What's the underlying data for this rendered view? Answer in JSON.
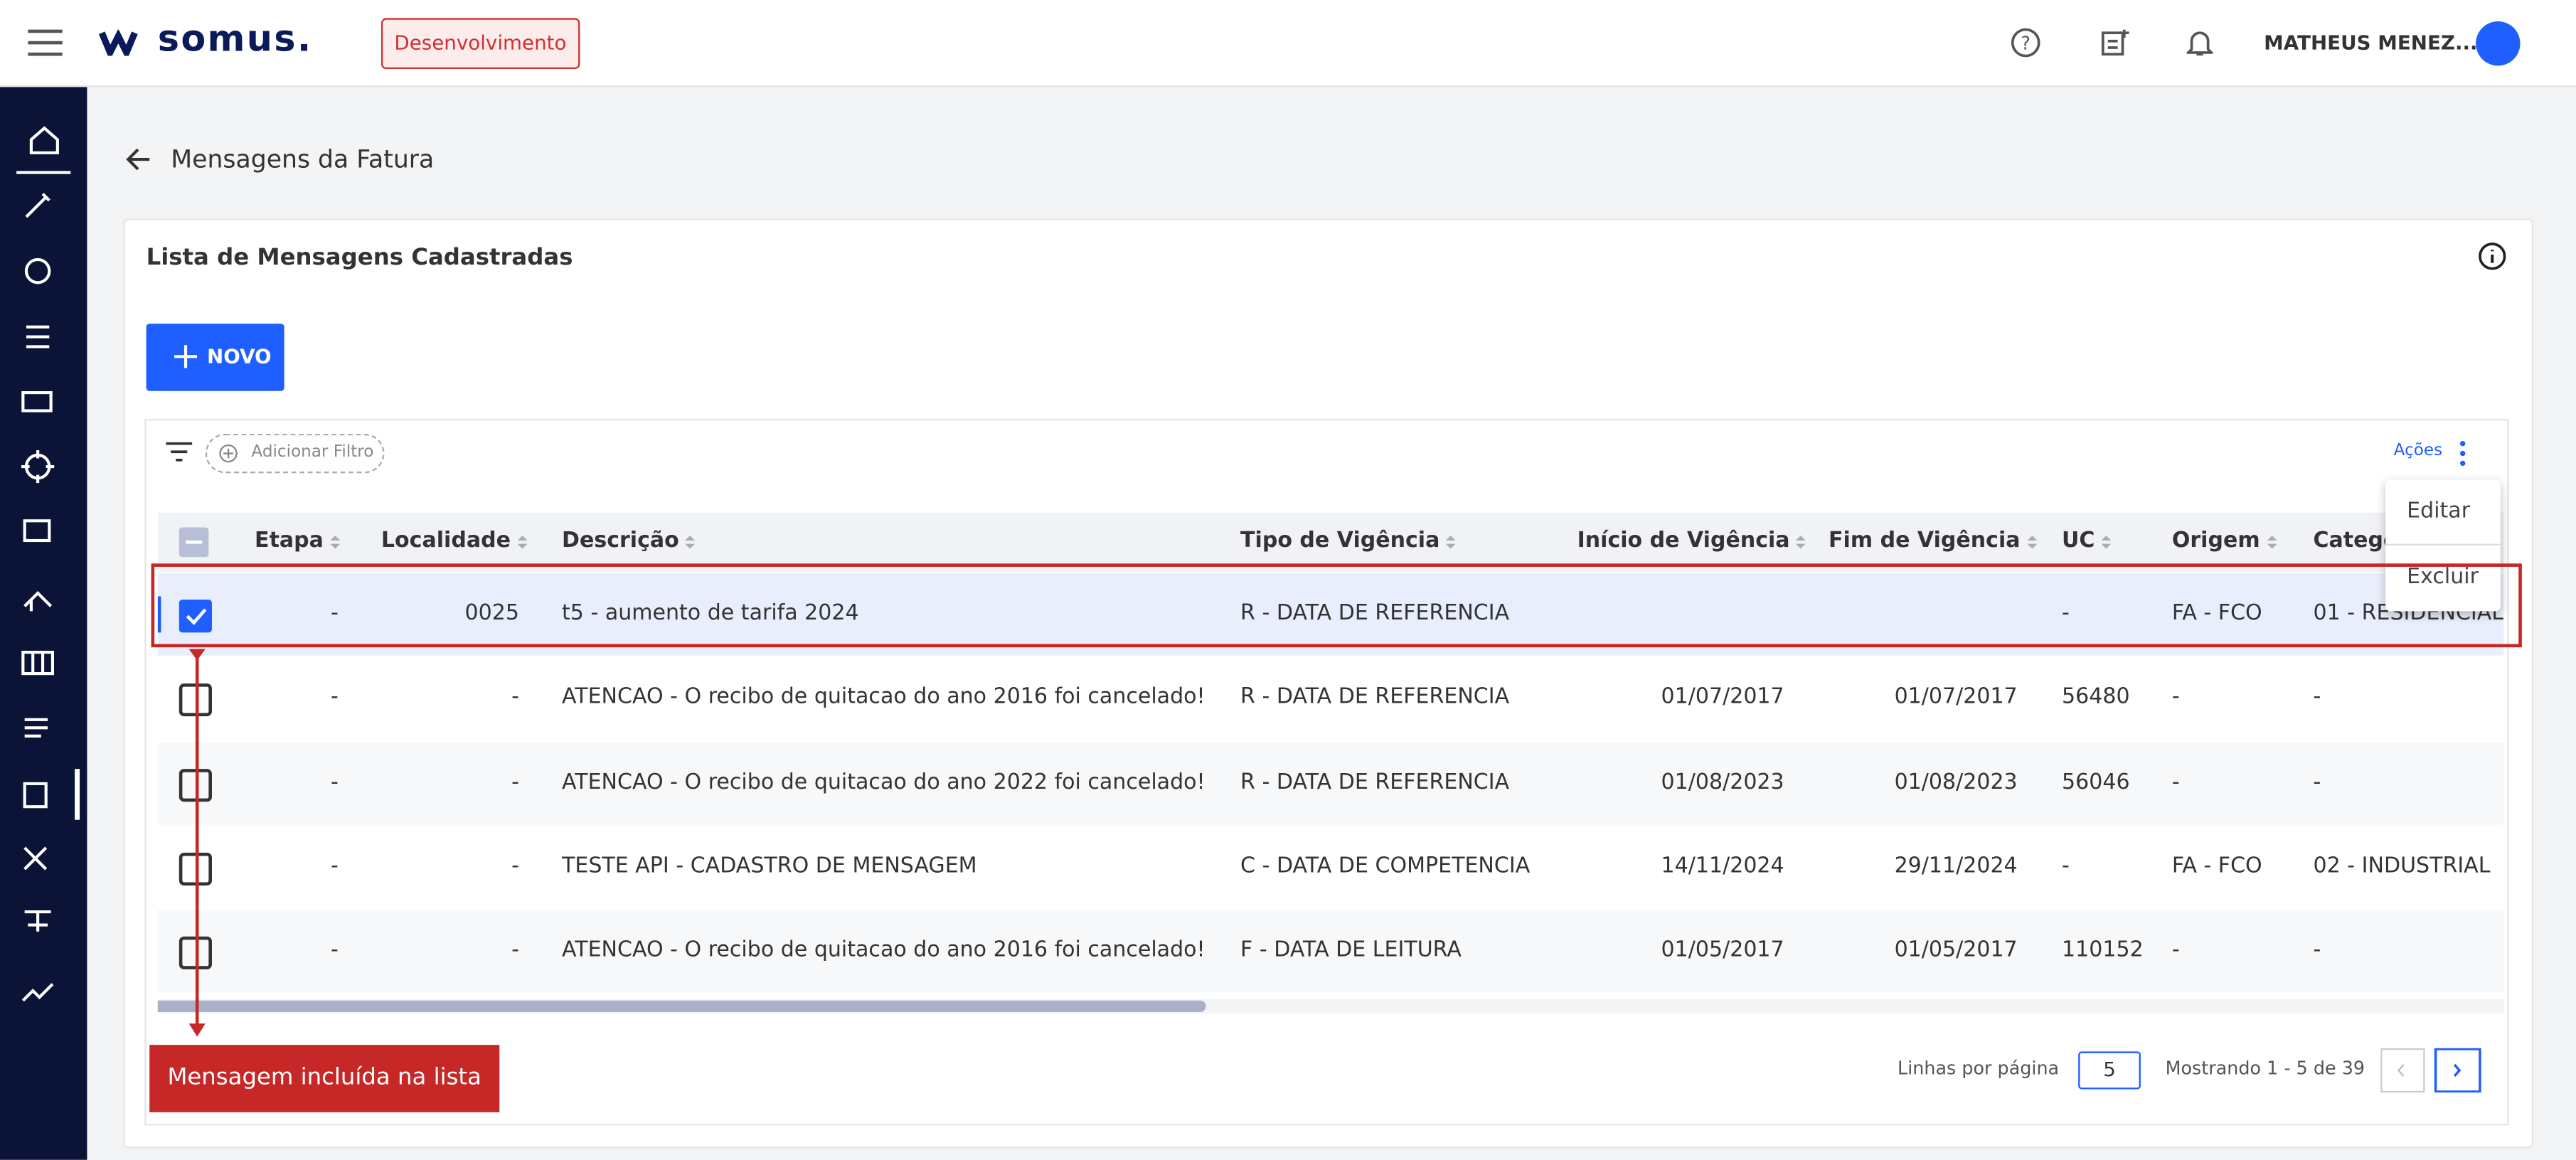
{
  "header": {
    "brand": "somus.",
    "environment": "Desenvolvimento",
    "user": "MATHEUS MENEZ..."
  },
  "page": {
    "title": "Mensagens da Fatura"
  },
  "card": {
    "title": "Lista de Mensagens Cadastradas",
    "new_button": "NOVO",
    "add_filter": "Adicionar Filtro",
    "actions": "Ações",
    "actions_menu": [
      "Editar",
      "Excluir"
    ]
  },
  "table": {
    "columns": [
      "Etapa",
      "Localidade",
      "Descrição",
      "Tipo de Vigência",
      "Início de Vigência",
      "Fim de Vigência",
      "UC",
      "Origem",
      "Categoria"
    ],
    "rows": [
      {
        "checked": true,
        "cells": [
          "-",
          "0025",
          "t5 - aumento de tarifa 2024",
          "R - DATA DE REFERENCIA",
          null,
          null,
          "-",
          "FA - FCO",
          "01 - RESIDENCIAL"
        ]
      },
      {
        "checked": false,
        "cells": [
          "-",
          "-",
          "ATENCAO - O recibo de quitacao do ano 2016 foi cancelado!",
          "R - DATA DE REFERENCIA",
          "01/07/2017",
          "01/07/2017",
          "56480",
          "-",
          "-"
        ]
      },
      {
        "checked": false,
        "cells": [
          "-",
          "-",
          "ATENCAO - O recibo de quitacao do ano 2022 foi cancelado!",
          "R - DATA DE REFERENCIA",
          "01/08/2023",
          "01/08/2023",
          "56046",
          "-",
          "-"
        ]
      },
      {
        "checked": false,
        "cells": [
          "-",
          "-",
          "TESTE API - CADASTRO DE MENSAGEM",
          "C - DATA DE COMPETENCIA",
          "14/11/2024",
          "29/11/2024",
          "-",
          "FA - FCO",
          "02 - INDUSTRIAL"
        ]
      },
      {
        "checked": false,
        "cells": [
          "-",
          "-",
          "ATENCAO - O recibo de quitacao do ano 2016 foi cancelado!",
          "F - DATA DE LEITURA",
          "01/05/2017",
          "01/05/2017",
          "110152",
          "-",
          "-"
        ]
      }
    ]
  },
  "pagination": {
    "rows_per_page_label": "Linhas por página",
    "rows_per_page": "5",
    "showing": "Mostrando 1 - 5 de 39"
  },
  "annotation": {
    "label": "Mensagem incluída na lista"
  }
}
